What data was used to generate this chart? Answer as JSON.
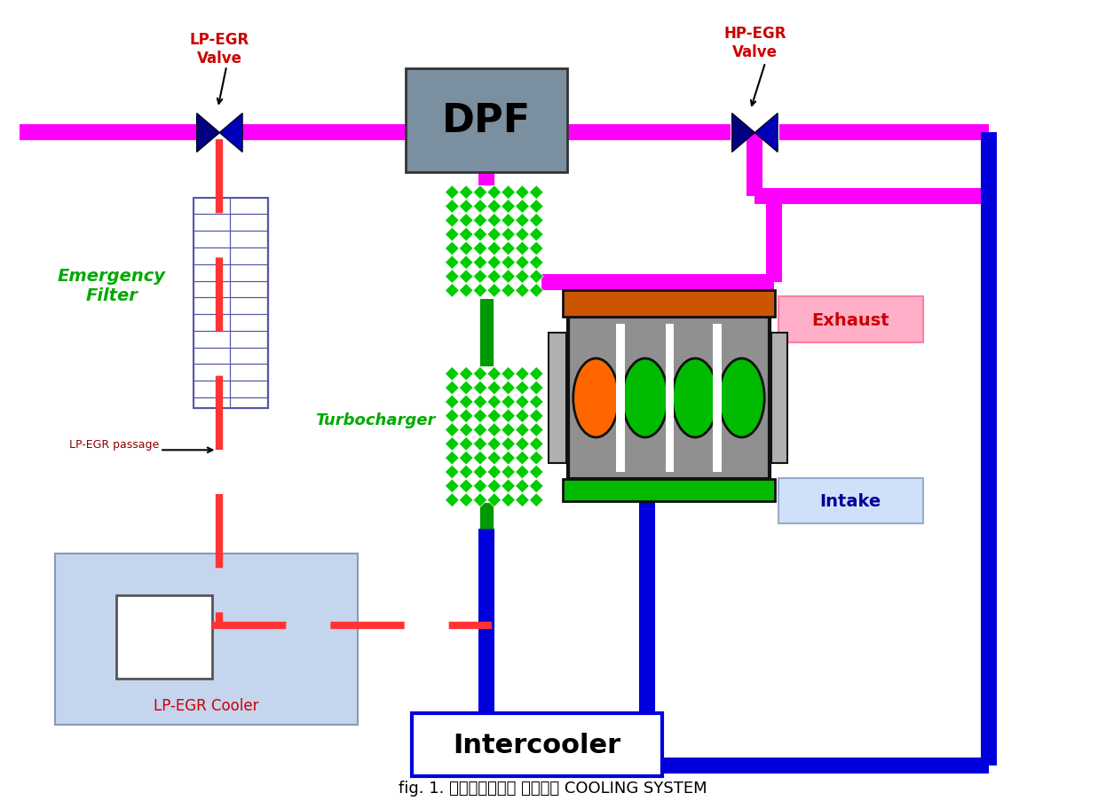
{
  "bg_color": "#ffffff",
  "magenta": "#FF00FF",
  "blue": "#0000DD",
  "green": "#00BB00",
  "red": "#FF0000",
  "dark_red": "#CC0000",
  "orange": "#CC5500",
  "title_text": "fig. 1. 배기재순환장치 클린디젬 COOLING SYSTEM",
  "lp_egr_label": "LP-EGR\nValve",
  "hp_egr_label": "HP-EGR\nValve",
  "dpf_label": "DPF",
  "turbo_label": "Turbocharger",
  "emergency_label": "Emergency\nFilter",
  "lp_egr_passage_label": "LP-EGR passage",
  "lp_egr_cooler_label": "LP-EGR Cooler",
  "intercooler_label": "Intercooler",
  "exhaust_label": "Exhaust",
  "intake_label": "Intake",
  "lw_pipe": 13
}
